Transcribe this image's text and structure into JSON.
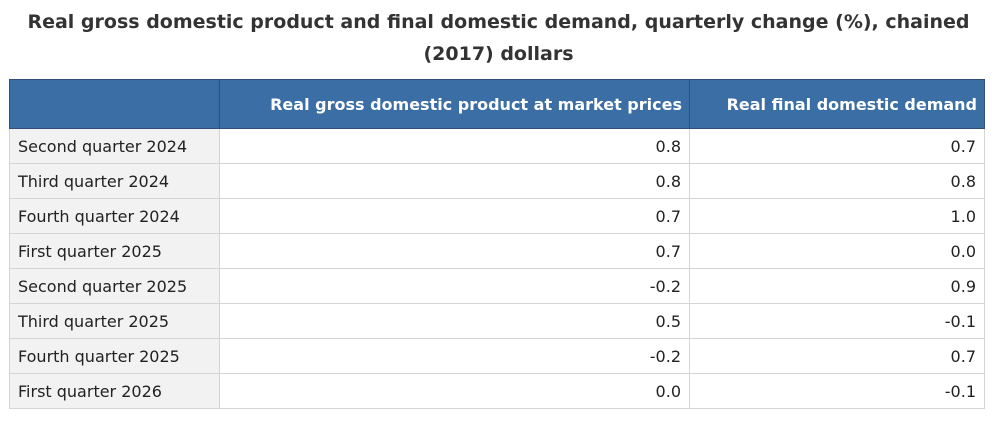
{
  "caption": "Real gross domestic product and final domestic demand, quarterly change (%), chained (2017) dollars",
  "headers": [
    "",
    "Real gross domestic product at market prices",
    "Real final domestic demand"
  ],
  "rows": [
    {
      "period": "Second quarter 2024",
      "gdp": "0.8",
      "fdd": "0.7"
    },
    {
      "period": "Third quarter 2024",
      "gdp": "0.8",
      "fdd": "0.8"
    },
    {
      "period": "Fourth quarter 2024",
      "gdp": "0.7",
      "fdd": "1.0"
    },
    {
      "period": "First quarter 2025",
      "gdp": "0.7",
      "fdd": "0.0"
    },
    {
      "period": "Second quarter 2025",
      "gdp": "-0.2",
      "fdd": "0.9"
    },
    {
      "period": "Third quarter 2025",
      "gdp": "0.5",
      "fdd": "-0.1"
    },
    {
      "period": "Fourth quarter 2025",
      "gdp": "-0.2",
      "fdd": "0.7"
    },
    {
      "period": "First quarter 2026",
      "gdp": "0.0",
      "fdd": "-0.1"
    }
  ],
  "colors": {
    "header_bg": "#3a6ea5",
    "header_text": "#ffffff",
    "row_header_bg": "#f2f2f2",
    "border": "#d4d4d4"
  }
}
